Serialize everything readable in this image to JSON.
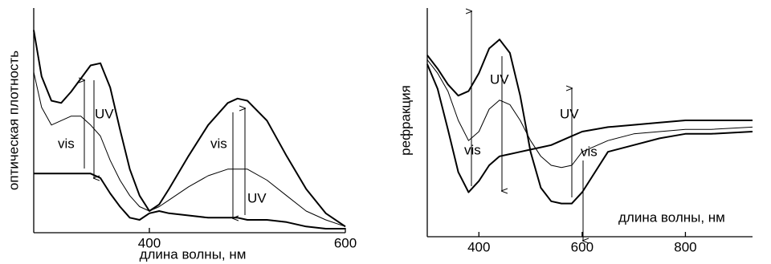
{
  "chart_data": [
    {
      "type": "line",
      "y_label": "оптическая плотность",
      "x_label": "длина волны, нм",
      "x": [
        282,
        290,
        300,
        310,
        320,
        330,
        340,
        350,
        360,
        370,
        380,
        390,
        400,
        410,
        420,
        440,
        460,
        480,
        490,
        500,
        520,
        540,
        560,
        580,
        600
      ],
      "xlim": [
        282,
        600
      ],
      "xticks": [
        400,
        600
      ],
      "ylim": [
        0,
        1
      ],
      "grid": false,
      "series": [
        {
          "color": "#000000",
          "line_width": 2,
          "values": [
            0.9,
            0.69,
            0.58,
            0.57,
            0.62,
            0.68,
            0.74,
            0.75,
            0.64,
            0.45,
            0.27,
            0.15,
            0.08,
            0.11,
            0.18,
            0.33,
            0.47,
            0.57,
            0.59,
            0.58,
            0.49,
            0.33,
            0.18,
            0.07,
            0.01
          ]
        },
        {
          "color": "#000000",
          "line_width": 1,
          "values": [
            0.71,
            0.55,
            0.47,
            0.49,
            0.51,
            0.51,
            0.47,
            0.42,
            0.31,
            0.22,
            0.15,
            0.1,
            0.08,
            0.1,
            0.13,
            0.19,
            0.24,
            0.27,
            0.27,
            0.27,
            0.22,
            0.15,
            0.08,
            0.04,
            0.01
          ]
        },
        {
          "color": "#000000",
          "line_width": 2,
          "values": [
            0.25,
            0.25,
            0.25,
            0.25,
            0.25,
            0.25,
            0.25,
            0.23,
            0.16,
            0.1,
            0.05,
            0.04,
            0.07,
            0.08,
            0.07,
            0.06,
            0.05,
            0.05,
            0.05,
            0.04,
            0.04,
            0.03,
            0.01,
            0.0,
            0.0
          ]
        }
      ],
      "annotations": [
        "UV",
        "vis",
        "vis",
        "UV"
      ]
    },
    {
      "type": "line",
      "y_label": "рефракция",
      "x_label": "длина волны, нм",
      "x": [
        300,
        320,
        340,
        360,
        380,
        400,
        420,
        440,
        460,
        480,
        500,
        520,
        540,
        560,
        580,
        600,
        650,
        700,
        750,
        800,
        850,
        930
      ],
      "xlim": [
        300,
        930
      ],
      "xticks": [
        400,
        600,
        800
      ],
      "ylim": [
        0,
        1
      ],
      "grid": false,
      "series": [
        {
          "color": "#000000",
          "line_width": 2,
          "values": [
            0.79,
            0.73,
            0.66,
            0.61,
            0.63,
            0.71,
            0.82,
            0.86,
            0.8,
            0.61,
            0.36,
            0.2,
            0.14,
            0.13,
            0.13,
            0.18,
            0.36,
            0.39,
            0.42,
            0.44,
            0.44,
            0.45
          ]
        },
        {
          "color": "#000000",
          "line_width": 2,
          "values": [
            0.75,
            0.64,
            0.46,
            0.27,
            0.18,
            0.23,
            0.3,
            0.34,
            0.35,
            0.36,
            0.37,
            0.38,
            0.39,
            0.41,
            0.43,
            0.45,
            0.47,
            0.48,
            0.49,
            0.5,
            0.5,
            0.5
          ]
        },
        {
          "color": "#000000",
          "line_width": 1,
          "values": [
            0.77,
            0.71,
            0.63,
            0.5,
            0.41,
            0.45,
            0.55,
            0.59,
            0.57,
            0.5,
            0.41,
            0.34,
            0.3,
            0.29,
            0.3,
            0.36,
            0.41,
            0.44,
            0.45,
            0.46,
            0.46,
            0.47
          ]
        }
      ],
      "annotations": [
        "UV",
        "vis",
        "UV",
        "vis"
      ]
    }
  ]
}
